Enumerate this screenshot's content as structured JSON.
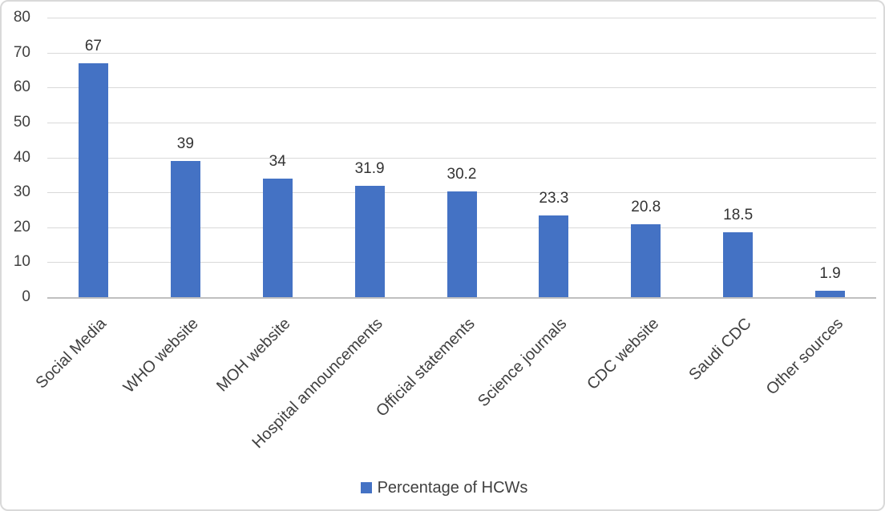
{
  "chart_data": {
    "type": "bar",
    "categories": [
      "Social Media",
      "WHO website",
      "MOH website",
      "Hospital announcements",
      "Official statements",
      "Science journals",
      "CDC website",
      "Saudi CDC",
      "Other sources"
    ],
    "values": [
      67,
      39,
      34,
      31.9,
      30.2,
      23.3,
      20.8,
      18.5,
      1.9
    ],
    "value_labels": [
      "67",
      "39",
      "34",
      "31.9",
      "30.2",
      "23.3",
      "20.8",
      "18.5",
      "1.9"
    ],
    "title": "",
    "xlabel": "",
    "ylabel": "",
    "ylim": [
      0,
      80
    ],
    "ytick_step": 10,
    "ytick_labels": [
      "0",
      "10",
      "20",
      "30",
      "40",
      "50",
      "60",
      "70",
      "80"
    ],
    "grid": true,
    "legend": {
      "position": "bottom",
      "entries": [
        "Percentage of HCWs"
      ]
    },
    "colors": {
      "bar": "#4472C4",
      "gridline": "#D9D9D9",
      "axis_line": "#BFBFBF",
      "text": "#404040",
      "chart_border": "#D9D9D9",
      "background": "#FFFFFF"
    }
  }
}
